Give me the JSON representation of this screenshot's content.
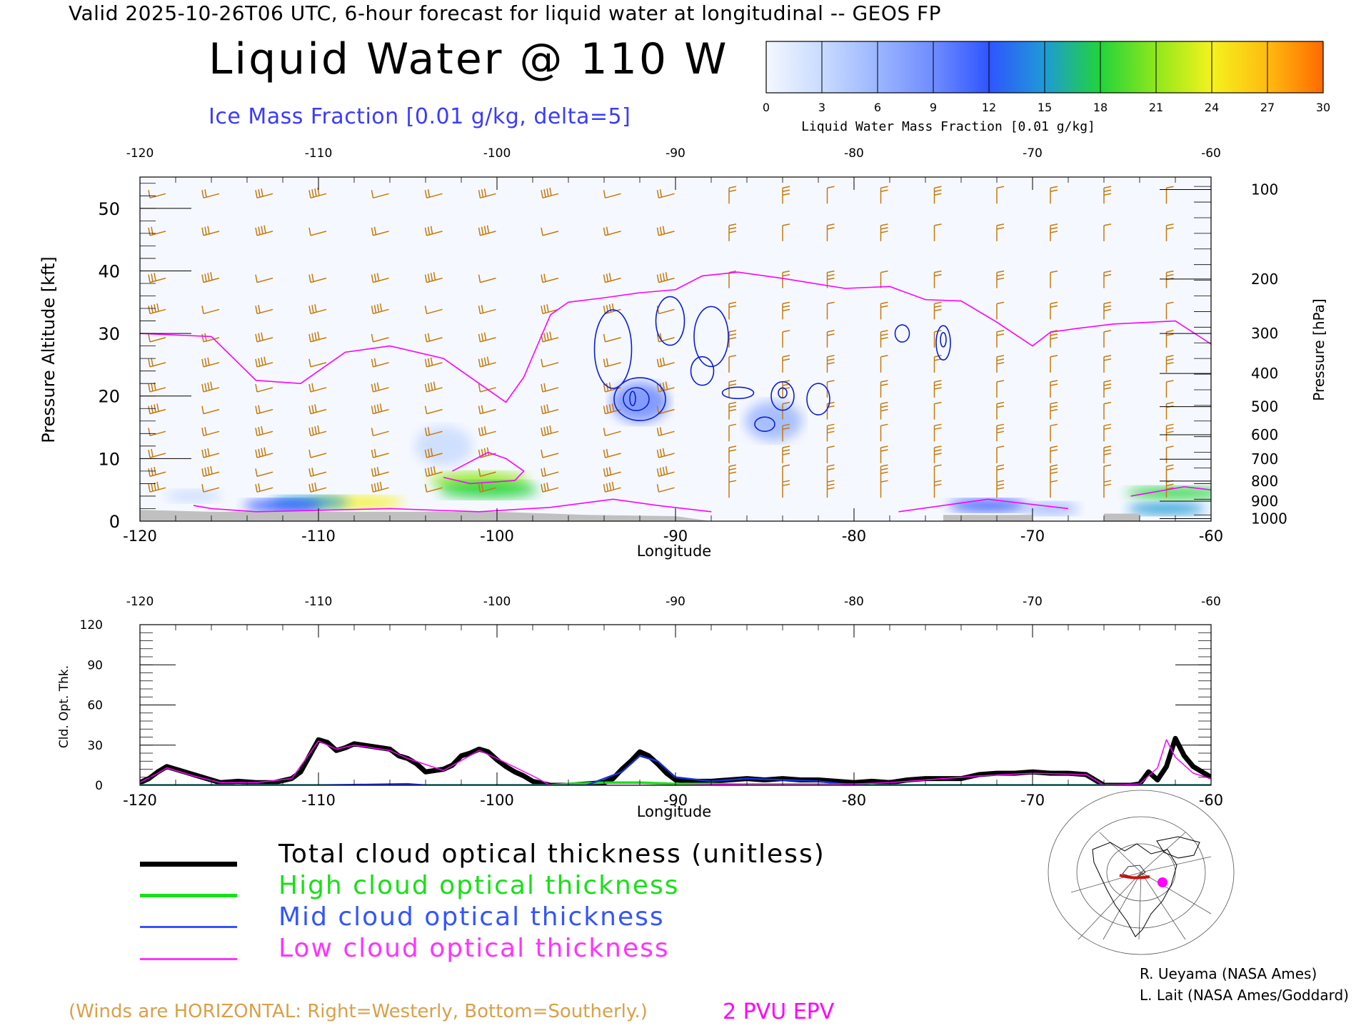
{
  "header": {
    "valid_line": "Valid 2025-10-26T06 UTC, 6-hour forecast for liquid water at longitudinal -- GEOS FP",
    "title": "Liquid Water @ 110 W",
    "subtitle": "Ice Mass Fraction [0.01 g/kg, delta=5]"
  },
  "colorbar": {
    "label": "Liquid Water Mass Fraction [0.01 g/kg]",
    "ticks": [
      "0",
      "3",
      "6",
      "9",
      "12",
      "15",
      "18",
      "21",
      "24",
      "27",
      "30"
    ],
    "colors": [
      "#f4f7ff",
      "#c9dbff",
      "#9bb6ff",
      "#6f8cff",
      "#2f55ff",
      "#1f9ad6",
      "#21d43a",
      "#8fe81c",
      "#f4f21e",
      "#ffbb10",
      "#ff6a00"
    ]
  },
  "chart_data": [
    {
      "type": "heatmap",
      "title": "Liquid Water @ 110 W",
      "xlabel": "Longitude",
      "ylabel": "Pressure Altitude [kft]",
      "y2label": "Pressure [hPa]",
      "xlim": [
        -120,
        -60
      ],
      "ylim": [
        0,
        55
      ],
      "x_ticks": [
        "-120",
        "-110",
        "-100",
        "-90",
        "-80",
        "-70",
        "-60"
      ],
      "y_ticks": [
        "0",
        "10",
        "20",
        "30",
        "40",
        "50"
      ],
      "pressure_ticks": [
        "100",
        "200",
        "300",
        "400",
        "500",
        "600",
        "700",
        "800",
        "900",
        "1000"
      ],
      "pressure_tick_kft": [
        53,
        38.7,
        30,
        23.6,
        18.3,
        13.8,
        9.9,
        6.4,
        3.2,
        0.4
      ],
      "colors": {
        "ice_contour": "#0a1fd6",
        "epv_line": "#ff00ff",
        "wind_barb": "#c47a0a",
        "terrain": "#c0c0c0"
      },
      "epv_2pvu": {
        "lon": [
          -120,
          -116,
          -113.5,
          -111,
          -108.5,
          -106,
          -103,
          -101,
          -99.5,
          -98.5,
          -97,
          -96,
          -94,
          -92,
          -90,
          -88.5,
          -86.5,
          -84,
          -80.5,
          -78,
          -76,
          -74,
          -72,
          -70,
          -69,
          -67.5,
          -65.5,
          -62,
          -60
        ],
        "kft": [
          30,
          29.5,
          22.5,
          22,
          27,
          28,
          26,
          22,
          19,
          23,
          33,
          35,
          35.7,
          36.5,
          37,
          39.2,
          39.8,
          38.8,
          37.2,
          37.5,
          35.4,
          35.2,
          31.8,
          28,
          30.2,
          30.8,
          31.5,
          32,
          28.3
        ]
      },
      "liquid_water_patches": [
        {
          "lon": -108,
          "kft": 3,
          "value": 24
        },
        {
          "lon": -110.5,
          "kft": 3,
          "value": 14
        },
        {
          "lon": -112,
          "kft": 2.5,
          "value": 11
        },
        {
          "lon": -101,
          "kft": 6.5,
          "value": 20
        },
        {
          "lon": -100.5,
          "kft": 5,
          "value": 17
        },
        {
          "lon": -92,
          "kft": 19,
          "value": 8
        },
        {
          "lon": -84.5,
          "kft": 16,
          "value": 5
        },
        {
          "lon": -72.5,
          "kft": 2.5,
          "value": 13
        },
        {
          "lon": -69,
          "kft": 2,
          "value": 6
        },
        {
          "lon": -62,
          "kft": 4.5,
          "value": 18
        },
        {
          "lon": -62.5,
          "kft": 2,
          "value": 14
        },
        {
          "lon": -117,
          "kft": 4,
          "value": 4
        },
        {
          "lon": -103,
          "kft": 12,
          "value": 3
        }
      ]
    },
    {
      "type": "line",
      "xlabel": "Longitude",
      "ylabel": "Cld. Opt. Thk.",
      "xlim": [
        -120,
        -60
      ],
      "ylim": [
        0,
        120
      ],
      "x_ticks": [
        "-120",
        "-110",
        "-100",
        "-90",
        "-80",
        "-70",
        "-60"
      ],
      "y_ticks": [
        "0",
        "30",
        "60",
        "90",
        "120"
      ],
      "series": [
        {
          "name": "Total cloud optical thickness (unitless)",
          "color": "#000000",
          "x": [
            -120,
            -119.5,
            -119,
            -118.5,
            -118,
            -117,
            -116,
            -115.5,
            -114.5,
            -113.5,
            -112.5,
            -111.5,
            -111,
            -110.5,
            -110,
            -109.5,
            -109,
            -108.5,
            -108,
            -107,
            -106,
            -105.5,
            -105,
            -104.5,
            -104,
            -103,
            -102.5,
            -102,
            -101.5,
            -101,
            -100.5,
            -100,
            -99.5,
            -99,
            -98.5,
            -98,
            -97,
            -96,
            -95,
            -94,
            -93.5,
            -93,
            -92.5,
            -92,
            -91.5,
            -91,
            -90.5,
            -90,
            -89,
            -88,
            -87,
            -86,
            -85,
            -84,
            -83,
            -82,
            -81,
            -80,
            -79,
            -78,
            -77,
            -76,
            -75,
            -74,
            -73,
            -72,
            -71,
            -70,
            -69,
            -68,
            -67,
            -66,
            -65,
            -64.5,
            -64,
            -63.5,
            -63,
            -62.5,
            -62,
            -61.5,
            -61,
            -60.5,
            -60
          ],
          "y": [
            2,
            5,
            10,
            14,
            12,
            8,
            4,
            2,
            3,
            2,
            2,
            5,
            10,
            22,
            34,
            32,
            26,
            28,
            31,
            29,
            27,
            22,
            20,
            16,
            10,
            12,
            15,
            22,
            24,
            27,
            25,
            19,
            14,
            10,
            7,
            3,
            0,
            0,
            1,
            2,
            5,
            12,
            18,
            25,
            22,
            16,
            9,
            4,
            3,
            3,
            4,
            5,
            4,
            5,
            4,
            4,
            3,
            2,
            3,
            2,
            4,
            5,
            5,
            5,
            8,
            9,
            9,
            10,
            9,
            9,
            8,
            0,
            0,
            0,
            1,
            10,
            4,
            14,
            35,
            22,
            14,
            10,
            6
          ]
        },
        {
          "name": "High cloud optical thickness",
          "color": "#18e018",
          "x": [
            -120,
            -100,
            -97,
            -96,
            -94,
            -92,
            -90,
            -88,
            -85,
            -80,
            -60
          ],
          "y": [
            0,
            0,
            0,
            1,
            2,
            2,
            1,
            1,
            0,
            0,
            0
          ]
        },
        {
          "name": "Mid cloud optical thickness",
          "color": "#1a2fd6",
          "x": [
            -120,
            -110,
            -105,
            -104,
            -100,
            -98,
            -95,
            -93,
            -92,
            -91,
            -90,
            -88,
            -86,
            -84,
            -82,
            -80,
            -60
          ],
          "y": [
            0,
            0,
            1,
            0,
            0,
            0,
            0,
            10,
            22,
            18,
            6,
            3,
            5,
            4,
            3,
            0,
            0
          ]
        },
        {
          "name": "Low cloud optical thickness",
          "color": "#ff00ff",
          "x": [
            -120,
            -119,
            -118.5,
            -117,
            -115.5,
            -113.5,
            -111.5,
            -110,
            -109,
            -108,
            -106,
            -105,
            -103,
            -101,
            -100,
            -98,
            -97,
            -90,
            -86,
            -80,
            -78,
            -76,
            -73,
            -70,
            -67,
            -66,
            -64,
            -63,
            -62.5,
            -62,
            -61,
            -60
          ],
          "y": [
            2,
            9,
            13,
            7,
            2,
            2,
            5,
            33,
            27,
            30,
            26,
            20,
            11,
            26,
            20,
            7,
            0,
            0,
            1,
            1,
            2,
            4,
            7,
            9,
            8,
            0,
            1,
            13,
            34,
            21,
            9,
            5
          ]
        }
      ]
    }
  ],
  "legend": {
    "items": [
      {
        "label": "Total cloud optical thickness (unitless)",
        "color": "#000000"
      },
      {
        "label": "High cloud optical thickness",
        "color": "#18e018"
      },
      {
        "label": "Mid cloud optical thickness",
        "color": "#3355ff"
      },
      {
        "label": "Low cloud optical thickness",
        "color": "#ff33ff"
      }
    ]
  },
  "footer": {
    "wind_note": "(Winds are HORIZONTAL: Right=Westerly, Bottom=Southerly.)",
    "epv_note": "2 PVU EPV",
    "credit_1": "R. Ueyama (NASA Ames)",
    "credit_2": "L. Lait (NASA Ames/Goddard)"
  }
}
